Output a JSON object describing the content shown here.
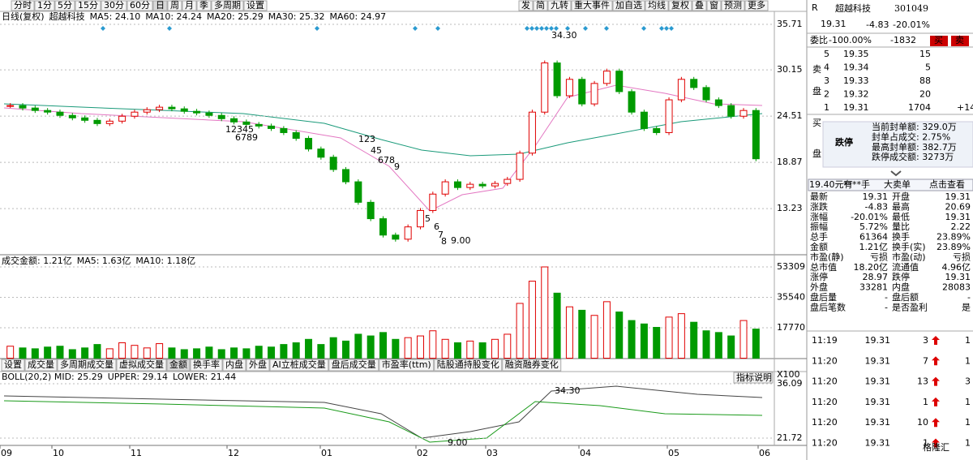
{
  "toolbar": {
    "periods": [
      "分时",
      "1分",
      "5分",
      "15分",
      "30分",
      "60分",
      "日",
      "周",
      "月",
      "季",
      "多周期",
      "设置"
    ],
    "tools": [
      "发",
      "简",
      "九转",
      "重大事件",
      "加自选",
      "均线",
      "复权",
      "叠",
      "窗",
      "预测",
      "更多"
    ]
  },
  "price_chart": {
    "type": "candlestick",
    "header": "日线(复权)",
    "name": "超越科技",
    "ma": [
      {
        "label": "MA5: 24.10",
        "color": "#6b6bd6"
      },
      {
        "label": "MA10: 24.24",
        "color": "#cc0000"
      },
      {
        "label": "MA20: 25.29",
        "color": "#e377c2"
      },
      {
        "label": "MA30: 25.32",
        "color": "#1a9a1a"
      },
      {
        "label": "MA60: 24.97",
        "color": "#1a3aa0"
      }
    ],
    "ylim": [
      7.8,
      36.5
    ],
    "yticks": [
      35.71,
      30.15,
      24.51,
      18.87,
      13.23
    ],
    "closes": [
      25.8,
      25.5,
      25.2,
      25.0,
      24.6,
      24.3,
      24.0,
      23.6,
      23.9,
      24.5,
      25.0,
      25.3,
      25.6,
      25.4,
      25.1,
      24.9,
      24.6,
      24.2,
      23.8,
      23.5,
      23.3,
      23.0,
      22.5,
      21.8,
      20.5,
      19.5,
      18.0,
      16.5,
      14.0,
      12.0,
      10.0,
      9.5,
      11.0,
      13.0,
      15.0,
      16.5,
      15.8,
      16.2,
      16.0,
      16.3,
      16.8,
      20.0,
      25.0,
      31.0,
      27.0,
      29.0,
      26.0,
      28.5,
      30.0,
      27.5,
      25.0,
      23.0,
      22.5,
      26.5,
      29.0,
      28.0,
      26.5,
      25.8,
      24.5,
      25.2,
      19.31
    ],
    "up_color": "#e00000",
    "down_color": "#009a00",
    "high_label": "34.30",
    "low_label": "9.00",
    "td_marks": [
      "12345",
      "6789",
      "123",
      "45",
      "678",
      "9",
      "5",
      "6",
      "7",
      "8"
    ]
  },
  "volume_chart": {
    "type": "bar",
    "legend": [
      {
        "label": "成交金额: 1.21亿",
        "color": "#000"
      },
      {
        "label": "MA5: 1.63亿",
        "color": "#1a3aa0"
      },
      {
        "label": "MA10: 1.18亿",
        "color": "#cc0000"
      }
    ],
    "ylim": [
      0,
      53309
    ],
    "yticks": [
      53309,
      35540,
      17770
    ],
    "unit": "X100",
    "values": [
      7000,
      6000,
      5500,
      6500,
      7000,
      5000,
      6000,
      8000,
      5500,
      9000,
      7500,
      6000,
      8500,
      6000,
      5000,
      5500,
      6500,
      5000,
      6000,
      5500,
      7000,
      6500,
      8000,
      9000,
      11000,
      8000,
      12000,
      10000,
      14000,
      13000,
      15000,
      11000,
      12000,
      13000,
      16000,
      11000,
      9000,
      10000,
      9000,
      11000,
      14000,
      32000,
      45000,
      53309,
      38000,
      30000,
      28000,
      25000,
      33000,
      27000,
      22000,
      20000,
      18000,
      24000,
      26000,
      21000,
      16000,
      15000,
      13000,
      22000,
      17000
    ]
  },
  "tabs": [
    "设置",
    "成交量",
    "多周期成交量",
    "虚拟成交量",
    "金额",
    "换手率",
    "内盘",
    "外盘",
    "AI立桩成交量",
    "盘后成交量",
    "市盈率(ttm)",
    "陆股通持股变化",
    "融资融券变化"
  ],
  "boll_chart": {
    "legend": [
      {
        "label": "BOLL(20,2) MID: 25.29",
        "color": "#000"
      },
      {
        "label": "UPPER: 29.14",
        "color": "#cc0000"
      },
      {
        "label": "LOWER: 21.44",
        "color": "#1a3aa0"
      }
    ],
    "button": "指标说明",
    "ticks": [
      "36.09",
      "21.72"
    ],
    "high_label": "34.30",
    "low_label": "9.00"
  },
  "x_axis": [
    "09",
    "10",
    "11",
    "12",
    "01",
    "02",
    "03",
    "04",
    "05",
    "06"
  ],
  "quote": {
    "flag": "R",
    "name": "超越科技",
    "code": "301049",
    "price": "19.31",
    "change": "-4.83",
    "pct": "-20.01%",
    "ratio_label": "委比",
    "ratio": "-100.00%",
    "ratio_diff": "-1832",
    "buy": "买",
    "sell": "卖",
    "sell_side": [
      "卖",
      "盘"
    ],
    "asks": [
      [
        "5",
        "19.35",
        "15"
      ],
      [
        "4",
        "19.34",
        "5"
      ],
      [
        "3",
        "19.33",
        "88"
      ],
      [
        "2",
        "19.32",
        "20"
      ],
      [
        "1",
        "19.31",
        "1704",
        "+14"
      ]
    ],
    "buy_side": [
      "买",
      "盘"
    ],
    "limit": "跌停",
    "limit_info": [
      "当前封单额: 329.0万",
      "封单占成交: 2.75%",
      "最高封单额: 382.7万",
      "跌停成交额: 3273万"
    ],
    "bigorder": [
      "19.40元有",
      "****手",
      "大卖单",
      "点击查看"
    ],
    "stats": [
      [
        "最新",
        "19.31",
        "开盘",
        "19.31"
      ],
      [
        "涨跌",
        "-4.83",
        "最高",
        "20.69"
      ],
      [
        "涨幅",
        "-20.01%",
        "最低",
        "19.31"
      ],
      [
        "振幅",
        "5.72%",
        "量比",
        "2.22"
      ],
      [
        "总手",
        "61364",
        "换手",
        "23.89%"
      ],
      [
        "金额",
        "1.21亿",
        "换手(实)",
        "23.89%"
      ],
      [
        "市盈(静)",
        "亏损",
        "市盈(动)",
        "亏损"
      ],
      [
        "总市值",
        "18.20亿",
        "流通值",
        "4.96亿"
      ],
      [
        "涨停",
        "28.97",
        "跌停",
        "19.31"
      ],
      [
        "外盘",
        "33281",
        "内盘",
        "28083"
      ],
      [
        "盘后量",
        "-",
        "盘后额",
        "-"
      ],
      [
        "盘后笔数",
        "-",
        "是否盈利",
        "是"
      ]
    ],
    "trades": [
      [
        "11:19",
        "19.31",
        "3",
        "1"
      ],
      [
        "11:20",
        "19.31",
        "7",
        "1"
      ],
      [
        "11:20",
        "19.31",
        "13",
        "3"
      ],
      [
        "11:20",
        "19.31",
        "1",
        "1"
      ],
      [
        "11:20",
        "19.31",
        "10",
        "1"
      ],
      [
        "11:20",
        "19.31",
        "1",
        "1"
      ]
    ],
    "watermark": "格隆汇"
  }
}
